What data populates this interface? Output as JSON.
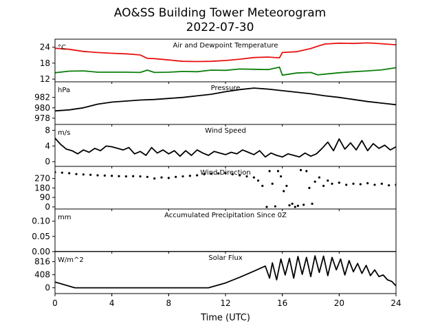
{
  "title_line1": "AO&SS Building Tower Meteorogram",
  "title_line2": "2022-07-30",
  "xlabel": "Time (UTC)",
  "x_ticks": [
    0,
    4,
    8,
    12,
    16,
    20,
    24
  ],
  "x_tick_labels": [
    "0",
    "4",
    "8",
    "12",
    "16",
    "20",
    "24"
  ],
  "chart_data": [
    {
      "type": "line",
      "title": "Air and Dewpoint Temperature",
      "unit": "°C",
      "xlim": [
        0,
        24
      ],
      "ylim": [
        11,
        27
      ],
      "y_ticks": [
        12,
        18,
        24
      ],
      "y_tick_labels": [
        "12",
        "18",
        "24"
      ],
      "series": [
        {
          "color": "#e8110f",
          "x": [
            0,
            1,
            2,
            3,
            4,
            5,
            6,
            6.5,
            7,
            8,
            9,
            10,
            11,
            12,
            13,
            14,
            15,
            15.8,
            16,
            17,
            18,
            18.5,
            19,
            20,
            21,
            22,
            23,
            24
          ],
          "values": [
            23.6,
            23.2,
            22.4,
            22.0,
            21.7,
            21.5,
            21.1,
            19.8,
            19.7,
            19.2,
            18.7,
            18.6,
            18.7,
            19.0,
            19.5,
            20.1,
            20.3,
            20.0,
            22.0,
            22.3,
            23.5,
            24.4,
            25.2,
            25.5,
            25.4,
            25.6,
            25.3,
            24.9
          ]
        },
        {
          "color": "#0a7f0a",
          "x": [
            0,
            1,
            2,
            3,
            4,
            5,
            6,
            6.5,
            7,
            8,
            9,
            10,
            11,
            12,
            13,
            14,
            15,
            15.8,
            16,
            17,
            18,
            18.5,
            19,
            20,
            21,
            22,
            23,
            24
          ],
          "values": [
            14.4,
            15.0,
            15.1,
            14.6,
            14.6,
            14.6,
            14.5,
            15.4,
            14.5,
            14.6,
            14.9,
            14.8,
            15.4,
            15.3,
            15.8,
            15.7,
            15.6,
            16.5,
            13.5,
            14.3,
            14.5,
            13.6,
            13.9,
            14.4,
            14.8,
            15.1,
            15.5,
            16.3
          ]
        }
      ]
    },
    {
      "type": "line",
      "title": "Pressure",
      "unit": "hPa",
      "xlim": [
        0,
        24
      ],
      "ylim": [
        976.8,
        985.0
      ],
      "y_ticks": [
        978,
        980,
        982
      ],
      "y_tick_labels": [
        "978",
        "980",
        "982"
      ],
      "series": [
        {
          "color": "#000000",
          "x": [
            0,
            1,
            2,
            3,
            4,
            5,
            6,
            7,
            8,
            9,
            10,
            11,
            12,
            13,
            14,
            15,
            16,
            17,
            18,
            19,
            20,
            21,
            22,
            23,
            24
          ],
          "values": [
            979.4,
            979.6,
            980.0,
            980.7,
            981.1,
            981.3,
            981.5,
            981.6,
            981.8,
            982.0,
            982.3,
            982.6,
            983.1,
            983.5,
            983.8,
            983.6,
            983.3,
            983.0,
            982.7,
            982.3,
            982.0,
            981.6,
            981.2,
            980.9,
            980.6
          ]
        }
      ]
    },
    {
      "type": "line",
      "title": "Wind Speed",
      "unit": "m/s",
      "xlim": [
        0,
        24
      ],
      "ylim": [
        -1.2,
        9.5
      ],
      "y_ticks": [
        0,
        4,
        8
      ],
      "y_tick_labels": [
        "0",
        "4",
        "8"
      ],
      "series": [
        {
          "color": "#000000",
          "x": [
            0,
            0.4,
            0.8,
            1.2,
            1.6,
            2.0,
            2.4,
            2.8,
            3.2,
            3.6,
            4.0,
            4.4,
            4.8,
            5.2,
            5.6,
            6.0,
            6.4,
            6.8,
            7.2,
            7.6,
            8.0,
            8.4,
            8.8,
            9.2,
            9.6,
            10.0,
            10.4,
            10.8,
            11.2,
            11.6,
            12.0,
            12.4,
            12.8,
            13.2,
            13.6,
            14.0,
            14.4,
            14.8,
            15.2,
            15.6,
            16.0,
            16.4,
            16.8,
            17.2,
            17.6,
            18.0,
            18.4,
            18.8,
            19.2,
            19.6,
            20.0,
            20.4,
            20.8,
            21.2,
            21.6,
            22.0,
            22.4,
            22.8,
            23.2,
            23.6,
            24.0
          ],
          "values": [
            6.0,
            4.4,
            3.2,
            2.8,
            2.0,
            3.0,
            2.4,
            3.4,
            2.8,
            4.0,
            3.8,
            3.4,
            3.0,
            3.6,
            2.0,
            2.6,
            1.6,
            3.6,
            2.2,
            3.0,
            2.0,
            2.8,
            1.4,
            2.8,
            1.6,
            3.0,
            2.2,
            1.6,
            2.6,
            2.2,
            1.8,
            2.4,
            2.0,
            3.0,
            2.4,
            1.8,
            2.8,
            1.2,
            2.2,
            1.6,
            1.2,
            2.0,
            1.6,
            1.2,
            2.2,
            1.4,
            2.0,
            3.4,
            5.0,
            2.8,
            5.8,
            3.2,
            4.8,
            3.0,
            5.4,
            2.8,
            4.6,
            3.4,
            4.2,
            3.0,
            3.8
          ]
        }
      ]
    },
    {
      "type": "scatter",
      "title": "Wind Direction",
      "unit": "",
      "xlim": [
        0,
        24
      ],
      "ylim": [
        -20,
        385
      ],
      "y_ticks": [
        0,
        90,
        180,
        270
      ],
      "y_tick_labels": [
        "0",
        "90",
        "180",
        "270"
      ],
      "series": [
        {
          "color": "#000000",
          "x": [
            0,
            0.5,
            1,
            1.5,
            2,
            2.5,
            3,
            3.5,
            4,
            4.5,
            5,
            5.5,
            6,
            6.5,
            7,
            7.5,
            8,
            8.5,
            9,
            9.5,
            10,
            10.5,
            11,
            11.5,
            12,
            12.5,
            13,
            13.5,
            14,
            14.3,
            14.6,
            14.9,
            15.1,
            15.3,
            15.5,
            15.7,
            15.9,
            16.1,
            16.3,
            16.5,
            16.7,
            16.9,
            17.1,
            17.3,
            17.5,
            17.7,
            17.9,
            18.1,
            18.3,
            18.6,
            18.9,
            19.2,
            19.5,
            20,
            20.5,
            21,
            21.5,
            22,
            22.5,
            23,
            23.5,
            24
          ],
          "values": [
            330,
            325,
            320,
            312,
            308,
            305,
            300,
            298,
            295,
            292,
            290,
            292,
            290,
            285,
            270,
            280,
            275,
            285,
            290,
            295,
            300,
            310,
            315,
            318,
            320,
            310,
            300,
            290,
            280,
            250,
            200,
            0,
            340,
            220,
            5,
            340,
            290,
            150,
            200,
            15,
            30,
            0,
            10,
            350,
            20,
            340,
            180,
            30,
            240,
            280,
            200,
            250,
            220,
            230,
            210,
            220,
            215,
            225,
            210,
            220,
            205,
            210
          ]
        }
      ]
    },
    {
      "type": "line",
      "title": "Accumulated Precipitation Since 0Z",
      "unit": "mm",
      "xlim": [
        0,
        24
      ],
      "ylim": [
        0,
        0.14
      ],
      "y_ticks": [
        0.0,
        0.05,
        0.1
      ],
      "y_tick_labels": [
        "0.00",
        "0.05",
        "0.10"
      ],
      "series": [
        {
          "color": "#000000",
          "x": [
            0,
            24
          ],
          "values": [
            0.0,
            0.0
          ]
        }
      ]
    },
    {
      "type": "line",
      "title": "Solar Flux",
      "unit": "W/m^2",
      "xlim": [
        0,
        24
      ],
      "ylim": [
        -180,
        1130
      ],
      "y_ticks": [
        0,
        408,
        816
      ],
      "y_tick_labels": [
        "0",
        "408",
        "816"
      ],
      "series": [
        {
          "color": "#000000",
          "x": [
            0,
            1.4,
            10.8,
            12,
            13,
            14,
            14.8,
            15.1,
            15.3,
            15.6,
            15.9,
            16.2,
            16.5,
            16.8,
            17.1,
            17.4,
            17.7,
            18.0,
            18.3,
            18.6,
            18.9,
            19.2,
            19.5,
            19.8,
            20.1,
            20.4,
            20.7,
            21.0,
            21.3,
            21.6,
            21.9,
            22.2,
            22.5,
            22.8,
            23.1,
            23.4,
            23.7,
            24
          ],
          "values": [
            180,
            0,
            0,
            150,
            330,
            520,
            680,
            300,
            780,
            250,
            900,
            400,
            920,
            300,
            980,
            420,
            950,
            350,
            1000,
            480,
            990,
            380,
            950,
            560,
            900,
            400,
            850,
            500,
            760,
            450,
            700,
            380,
            560,
            350,
            400,
            250,
            200,
            60
          ]
        }
      ]
    }
  ]
}
